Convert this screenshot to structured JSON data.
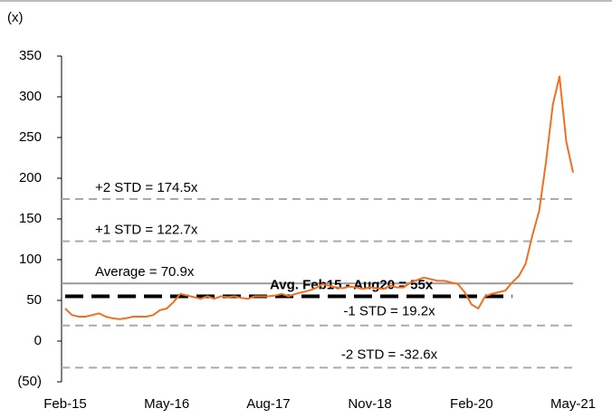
{
  "chart_data": {
    "type": "line",
    "unit_label": "(x)",
    "categories": [
      "Feb-15",
      null,
      null,
      null,
      null,
      null,
      null,
      null,
      null,
      null,
      null,
      null,
      null,
      null,
      null,
      "May-16",
      null,
      null,
      null,
      null,
      null,
      null,
      null,
      null,
      null,
      null,
      null,
      null,
      null,
      null,
      "Aug-17",
      null,
      null,
      null,
      null,
      null,
      null,
      null,
      null,
      null,
      null,
      null,
      null,
      null,
      null,
      "Nov-18",
      null,
      null,
      null,
      null,
      null,
      null,
      null,
      null,
      null,
      null,
      null,
      null,
      null,
      null,
      "Feb-20",
      null,
      null,
      null,
      null,
      null,
      null,
      null,
      null,
      null,
      null,
      null,
      null,
      null,
      null,
      "May-21"
    ],
    "series": [
      {
        "color": "#f07020",
        "values": [
          40,
          32,
          30,
          30,
          32,
          34,
          30,
          28,
          27,
          28,
          30,
          30,
          30,
          32,
          38,
          40,
          48,
          58,
          56,
          54,
          52,
          55,
          52,
          55,
          54,
          55,
          53,
          52,
          55,
          55,
          55,
          56,
          58,
          55,
          58,
          60,
          62,
          65,
          70,
          68,
          66,
          65,
          67,
          66,
          64,
          66,
          65,
          64,
          68,
          66,
          66,
          72,
          75,
          78,
          76,
          74,
          74,
          72,
          70,
          60,
          45,
          40,
          55,
          58,
          60,
          62,
          72,
          80,
          95,
          130,
          160,
          220,
          290,
          325,
          245,
          207
        ]
      }
    ],
    "ylim": [
      -50,
      350
    ],
    "yticks": [
      {
        "value": -50,
        "label": "(50)"
      },
      0,
      50,
      100,
      150,
      200,
      250,
      300,
      350
    ],
    "reference_lines": [
      {
        "label": "+2 STD = 174.5x",
        "value": 174.5,
        "style": "dashed",
        "color": "#aaaaaa"
      },
      {
        "label": "+1 STD = 122.7x",
        "value": 122.7,
        "style": "dashed",
        "color": "#aaaaaa"
      },
      {
        "label": "Average = 70.9x",
        "value": 70.9,
        "style": "solid",
        "color": "#999999"
      },
      {
        "label": "-1 STD = 19.2x",
        "value": 19.2,
        "style": "dashed",
        "color": "#aaaaaa"
      },
      {
        "label": "-2 STD = -32.6x",
        "value": -32.6,
        "style": "dashed",
        "color": "#aaaaaa"
      },
      {
        "label": "Avg. Feb15 - Aug20 = 55x",
        "value": 55,
        "style": "bold-dashed",
        "color": "#000000",
        "x_range": [
          0,
          66
        ]
      }
    ]
  }
}
